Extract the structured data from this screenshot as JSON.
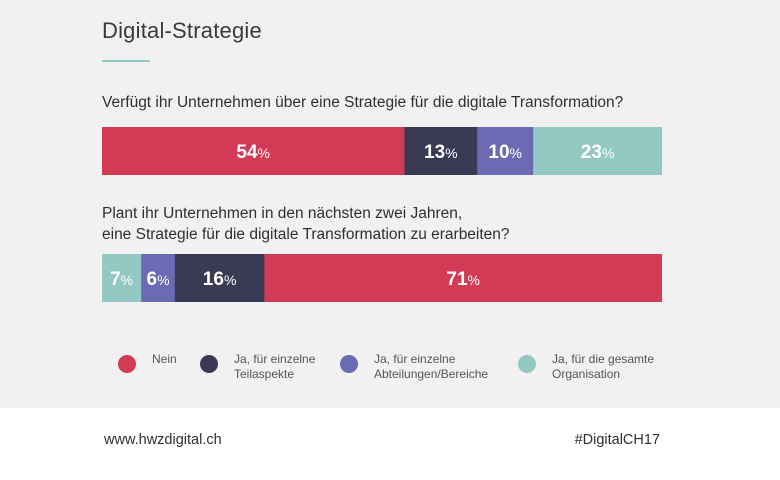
{
  "title": "Digital-Strategie",
  "footer": {
    "website": "www.hwzdigital.ch",
    "hashtag": "#DigitalCH17"
  },
  "colors": {
    "nein": "#d23a56",
    "einzelne_teilaspekte": "#3b3a55",
    "einzelne_abteilungen": "#6a6bb3",
    "gesamte_organisation": "#93c8c3",
    "title_underline": "#8fc9c1"
  },
  "legend": [
    {
      "key": "nein",
      "lines": [
        "Nein"
      ],
      "color": "#d23a56"
    },
    {
      "key": "einzelne_teilaspekte",
      "lines": [
        "Ja, für einzelne",
        "Teilaspekte"
      ],
      "color": "#3b3a55"
    },
    {
      "key": "einzelne_abteilungen",
      "lines": [
        "Ja, für einzelne",
        "Abteilungen/Bereiche"
      ],
      "color": "#6a6bb3"
    },
    {
      "key": "gesamte_organisation",
      "lines": [
        "Ja, für die gesamte",
        "Organisation"
      ],
      "color": "#93c8c3"
    }
  ],
  "chart_data": [
    {
      "type": "bar",
      "stacked": true,
      "orientation": "horizontal",
      "question": "Verfügt ihr Unternehmen über eine Strategie für die digitale Transformation?",
      "segments": [
        {
          "key": "nein",
          "value": 54,
          "label": "54",
          "color": "#d23a56"
        },
        {
          "key": "einzelne_teilaspekte",
          "value": 13,
          "label": "13",
          "color": "#3b3a55"
        },
        {
          "key": "einzelne_abteilungen",
          "value": 10,
          "label": "10",
          "color": "#6a6bb3"
        },
        {
          "key": "gesamte_organisation",
          "value": 23,
          "label": "23",
          "color": "#93c8c3"
        }
      ],
      "unit": "%"
    },
    {
      "type": "bar",
      "stacked": true,
      "orientation": "horizontal",
      "question_lines": [
        "Plant ihr Unternehmen in den nächsten zwei Jahren,",
        "eine Strategie für die digitale Transformation zu erarbeiten?"
      ],
      "segments": [
        {
          "key": "gesamte_organisation",
          "value": 7,
          "label": "7",
          "color": "#93c8c3"
        },
        {
          "key": "einzelne_abteilungen",
          "value": 6,
          "label": "6",
          "color": "#6a6bb3"
        },
        {
          "key": "einzelne_teilaspekte",
          "value": 16,
          "label": "16",
          "color": "#3b3a55"
        },
        {
          "key": "nein",
          "value": 71,
          "label": "71",
          "color": "#d23a56"
        }
      ],
      "unit": "%"
    }
  ]
}
